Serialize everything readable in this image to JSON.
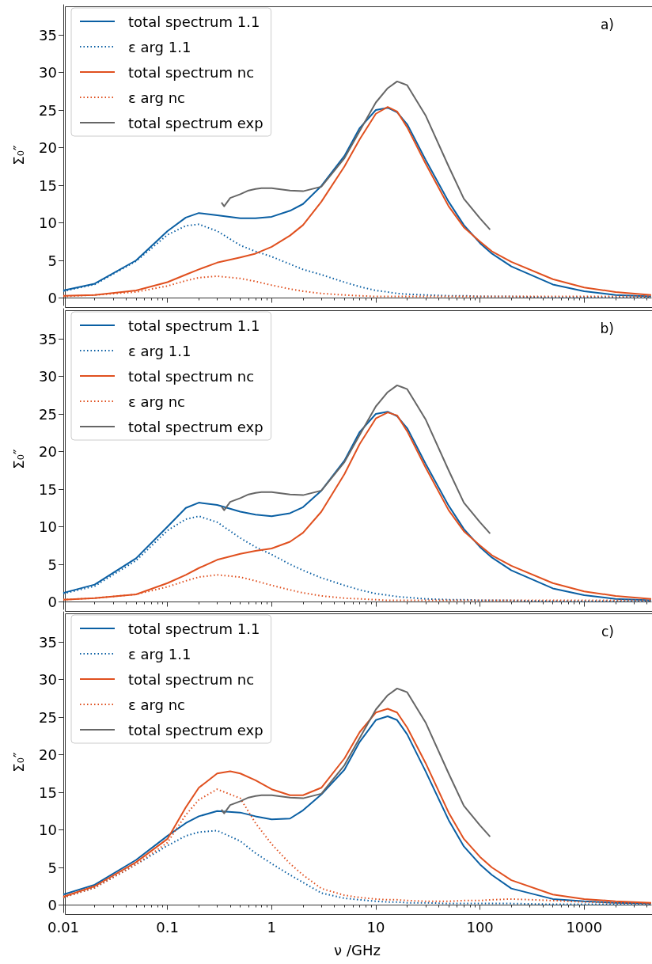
{
  "chart_data": [
    {
      "type": "line",
      "ylabel": "Σ₀″",
      "annotations": [
        "a)"
      ],
      "log": "x",
      "xlim": [
        0.01,
        4400
      ],
      "xticks": [
        0.01,
        0.1,
        1,
        10,
        100,
        1000
      ],
      "ylim": [
        -1,
        39
      ],
      "yticks": [
        0,
        5,
        10,
        15,
        20,
        25,
        30,
        35
      ],
      "tick_labels": "y",
      "legend": "top left",
      "series": [
        {
          "name": "total spectrum 1.1",
          "color": "#0a5fa3",
          "line_style": "solid",
          "x": [
            0.01,
            0.02,
            0.05,
            0.1,
            0.15,
            0.2,
            0.3,
            0.5,
            0.7,
            1,
            1.5,
            2,
            3,
            5,
            7,
            10,
            13,
            16,
            20,
            30,
            50,
            70,
            100,
            130,
            200,
            500,
            1000,
            2000,
            4400
          ],
          "values": [
            1.0,
            1.9,
            5.0,
            8.9,
            10.7,
            11.3,
            11.0,
            10.6,
            10.6,
            10.8,
            11.6,
            12.5,
            14.9,
            18.9,
            22.6,
            25.0,
            25.3,
            24.7,
            23.1,
            18.4,
            12.8,
            9.7,
            7.3,
            5.9,
            4.2,
            1.8,
            0.9,
            0.4,
            0.2
          ]
        },
        {
          "name": "ε arg 1.1",
          "color": "#0a5fa3",
          "line_style": "dotted",
          "x": [
            0.01,
            0.02,
            0.05,
            0.1,
            0.15,
            0.2,
            0.3,
            0.5,
            0.7,
            1,
            1.5,
            2,
            3,
            5,
            7,
            10,
            13,
            16,
            20,
            30,
            50,
            70,
            100,
            130,
            200,
            500,
            1000,
            2000,
            4400
          ],
          "values": [
            0.9,
            1.8,
            4.9,
            8.4,
            9.6,
            9.8,
            8.9,
            7.0,
            6.2,
            5.5,
            4.5,
            3.8,
            3.1,
            2.1,
            1.5,
            1.0,
            0.8,
            0.6,
            0.5,
            0.4,
            0.3,
            0.3,
            0.2,
            0.2,
            0.2,
            0.1,
            0.1,
            0.1,
            0.1
          ]
        },
        {
          "name": "total spectrum nc",
          "color": "#e0501f",
          "line_style": "solid",
          "x": [
            0.01,
            0.02,
            0.05,
            0.1,
            0.15,
            0.2,
            0.3,
            0.5,
            0.7,
            1,
            1.5,
            2,
            3,
            5,
            7,
            10,
            13,
            16,
            20,
            30,
            50,
            70,
            100,
            130,
            200,
            500,
            1000,
            2000,
            4400
          ],
          "values": [
            0.3,
            0.4,
            1.0,
            2.1,
            3.1,
            3.8,
            4.7,
            5.4,
            5.9,
            6.8,
            8.3,
            9.7,
            12.8,
            17.5,
            21.1,
            24.5,
            25.4,
            24.8,
            22.7,
            17.9,
            12.2,
            9.4,
            7.5,
            6.2,
            4.8,
            2.5,
            1.4,
            0.8,
            0.4
          ]
        },
        {
          "name": "ε arg nc",
          "color": "#e0501f",
          "line_style": "dotted",
          "x": [
            0.01,
            0.02,
            0.05,
            0.1,
            0.15,
            0.2,
            0.3,
            0.5,
            0.7,
            1,
            1.5,
            2,
            3,
            5,
            7,
            10,
            13,
            16,
            20,
            30,
            50,
            70,
            100,
            130,
            200,
            500,
            1000,
            2000,
            4400
          ],
          "values": [
            0.2,
            0.4,
            0.8,
            1.6,
            2.3,
            2.7,
            2.9,
            2.6,
            2.2,
            1.7,
            1.2,
            0.9,
            0.6,
            0.4,
            0.3,
            0.2,
            0.2,
            0.2,
            0.2,
            0.2,
            0.2,
            0.2,
            0.2,
            0.2,
            0.2,
            0.2,
            0.2,
            0.2,
            0.2
          ]
        },
        {
          "name": "total spectrum exp",
          "color": "#666666",
          "line_style": "solid",
          "x": [
            0.33,
            0.35,
            0.4,
            0.5,
            0.6,
            0.7,
            0.8,
            1,
            1.5,
            2,
            3,
            5,
            7,
            10,
            13,
            16,
            20,
            30,
            50,
            70,
            100,
            125
          ],
          "values": [
            12.7,
            12.2,
            13.3,
            13.8,
            14.3,
            14.5,
            14.6,
            14.6,
            14.3,
            14.2,
            14.8,
            18.6,
            22.2,
            26.0,
            27.9,
            28.8,
            28.3,
            24.3,
            17.5,
            13.2,
            10.6,
            9.1
          ]
        }
      ]
    },
    {
      "type": "line",
      "ylabel": "Σ₀″",
      "annotations": [
        "b)"
      ],
      "log": "x",
      "xlim": [
        0.01,
        4400
      ],
      "xticks": [
        0.01,
        0.1,
        1,
        10,
        100,
        1000
      ],
      "ylim": [
        -1,
        39
      ],
      "yticks": [
        0,
        5,
        10,
        15,
        20,
        25,
        30,
        35
      ],
      "tick_labels": "y",
      "legend": "top left",
      "series": [
        {
          "name": "total spectrum 1.1",
          "color": "#0a5fa3",
          "line_style": "solid",
          "x": [
            0.01,
            0.02,
            0.05,
            0.1,
            0.15,
            0.2,
            0.3,
            0.5,
            0.7,
            1,
            1.5,
            2,
            3,
            5,
            7,
            10,
            13,
            16,
            20,
            30,
            50,
            70,
            100,
            130,
            200,
            500,
            1000,
            2000,
            4400
          ],
          "values": [
            1.2,
            2.3,
            5.8,
            10.0,
            12.5,
            13.2,
            12.9,
            12.0,
            11.6,
            11.4,
            11.8,
            12.6,
            14.8,
            18.8,
            22.6,
            25.0,
            25.3,
            24.7,
            23.1,
            18.4,
            12.8,
            9.7,
            7.3,
            5.9,
            4.2,
            1.8,
            0.9,
            0.4,
            0.2
          ]
        },
        {
          "name": "ε arg 1.1",
          "color": "#0a5fa3",
          "line_style": "dotted",
          "x": [
            0.01,
            0.02,
            0.05,
            0.1,
            0.15,
            0.2,
            0.3,
            0.5,
            0.7,
            1,
            1.5,
            2,
            3,
            5,
            7,
            10,
            13,
            16,
            20,
            30,
            50,
            70,
            100,
            130,
            200,
            500,
            1000,
            2000,
            4400
          ],
          "values": [
            1.1,
            2.1,
            5.5,
            9.5,
            11.0,
            11.4,
            10.6,
            8.5,
            7.3,
            6.3,
            5.0,
            4.2,
            3.2,
            2.2,
            1.6,
            1.1,
            0.9,
            0.7,
            0.6,
            0.4,
            0.3,
            0.3,
            0.2,
            0.2,
            0.2,
            0.1,
            0.1,
            0.1,
            0.1
          ]
        },
        {
          "name": "total spectrum nc",
          "color": "#e0501f",
          "line_style": "solid",
          "x": [
            0.01,
            0.02,
            0.05,
            0.1,
            0.15,
            0.2,
            0.3,
            0.5,
            0.7,
            1,
            1.5,
            2,
            3,
            5,
            7,
            10,
            13,
            16,
            20,
            30,
            50,
            70,
            100,
            130,
            200,
            500,
            1000,
            2000,
            4400
          ],
          "values": [
            0.3,
            0.5,
            1.0,
            2.5,
            3.6,
            4.5,
            5.6,
            6.4,
            6.8,
            7.1,
            8.0,
            9.2,
            12.0,
            17.0,
            21.0,
            24.4,
            25.2,
            24.8,
            22.7,
            17.9,
            12.2,
            9.4,
            7.5,
            6.2,
            4.8,
            2.5,
            1.4,
            0.8,
            0.4
          ]
        },
        {
          "name": "ε arg nc",
          "color": "#e0501f",
          "line_style": "dotted",
          "x": [
            0.01,
            0.02,
            0.05,
            0.1,
            0.15,
            0.2,
            0.3,
            0.5,
            0.7,
            1,
            1.5,
            2,
            3,
            5,
            7,
            10,
            13,
            16,
            20,
            30,
            50,
            70,
            100,
            130,
            200,
            500,
            1000,
            2000,
            4400
          ],
          "values": [
            0.3,
            0.5,
            1.0,
            2.0,
            2.8,
            3.3,
            3.6,
            3.3,
            2.8,
            2.2,
            1.6,
            1.2,
            0.8,
            0.5,
            0.4,
            0.3,
            0.2,
            0.2,
            0.2,
            0.2,
            0.2,
            0.2,
            0.2,
            0.2,
            0.2,
            0.2,
            0.2,
            0.2,
            0.2
          ]
        },
        {
          "name": "total spectrum exp",
          "color": "#666666",
          "line_style": "solid",
          "x": [
            0.33,
            0.35,
            0.4,
            0.5,
            0.6,
            0.7,
            0.8,
            1,
            1.5,
            2,
            3,
            5,
            7,
            10,
            13,
            16,
            20,
            30,
            50,
            70,
            100,
            125
          ],
          "values": [
            12.7,
            12.2,
            13.3,
            13.8,
            14.3,
            14.5,
            14.6,
            14.6,
            14.3,
            14.2,
            14.8,
            18.6,
            22.2,
            26.0,
            27.9,
            28.8,
            28.3,
            24.3,
            17.5,
            13.2,
            10.6,
            9.1
          ]
        }
      ]
    },
    {
      "type": "line",
      "xlabel": "ν /GHz",
      "ylabel": "Σ₀″",
      "annotations": [
        "c)"
      ],
      "log": "x",
      "xlim": [
        0.01,
        4400
      ],
      "xticks": [
        0.01,
        0.1,
        1,
        10,
        100,
        1000
      ],
      "ylim": [
        -1,
        39
      ],
      "yticks": [
        0,
        5,
        10,
        15,
        20,
        25,
        30,
        35
      ],
      "legend": "top left",
      "series": [
        {
          "name": "total spectrum 1.1",
          "color": "#0a5fa3",
          "line_style": "solid",
          "x": [
            0.01,
            0.02,
            0.05,
            0.1,
            0.15,
            0.2,
            0.3,
            0.5,
            0.7,
            1,
            1.5,
            2,
            3,
            5,
            7,
            10,
            13,
            16,
            20,
            30,
            50,
            70,
            100,
            130,
            200,
            500,
            1000,
            2000,
            4400
          ],
          "values": [
            1.4,
            2.7,
            6.0,
            9.2,
            10.9,
            11.8,
            12.5,
            12.3,
            11.8,
            11.4,
            11.5,
            12.6,
            14.7,
            18.0,
            21.7,
            24.6,
            25.1,
            24.6,
            22.7,
            17.8,
            11.3,
            7.8,
            5.4,
            4.0,
            2.2,
            0.8,
            0.5,
            0.3,
            0.2
          ]
        },
        {
          "name": "ε arg 1.1",
          "color": "#0a5fa3",
          "line_style": "dotted",
          "x": [
            0.01,
            0.02,
            0.05,
            0.1,
            0.15,
            0.2,
            0.3,
            0.5,
            0.7,
            1,
            1.5,
            2,
            3,
            5,
            7,
            10,
            13,
            16,
            20,
            30,
            50,
            70,
            100,
            130,
            200,
            500,
            1000,
            2000,
            4400
          ],
          "values": [
            1.0,
            2.3,
            5.4,
            7.9,
            9.2,
            9.7,
            9.9,
            8.5,
            6.9,
            5.5,
            4.0,
            3.0,
            1.6,
            0.9,
            0.7,
            0.5,
            0.4,
            0.4,
            0.3,
            0.3,
            0.2,
            0.2,
            0.2,
            0.2,
            0.2,
            0.1,
            0.1,
            0.1,
            0.1
          ]
        },
        {
          "name": "total spectrum nc",
          "color": "#e0501f",
          "line_style": "solid",
          "x": [
            0.01,
            0.02,
            0.05,
            0.1,
            0.15,
            0.2,
            0.3,
            0.4,
            0.5,
            0.7,
            1,
            1.5,
            2,
            3,
            5,
            7,
            10,
            13,
            16,
            20,
            30,
            50,
            70,
            100,
            130,
            200,
            500,
            1000,
            2000,
            4400
          ],
          "values": [
            1.1,
            2.5,
            5.7,
            8.8,
            13.0,
            15.6,
            17.5,
            17.8,
            17.5,
            16.6,
            15.4,
            14.6,
            14.6,
            15.6,
            19.5,
            23.0,
            25.6,
            26.1,
            25.6,
            23.6,
            18.9,
            12.3,
            8.8,
            6.4,
            5.0,
            3.3,
            1.4,
            0.8,
            0.5,
            0.3
          ]
        },
        {
          "name": "ε arg nc",
          "color": "#e0501f",
          "line_style": "dotted",
          "x": [
            0.01,
            0.02,
            0.05,
            0.1,
            0.15,
            0.2,
            0.3,
            0.5,
            0.7,
            1,
            1.5,
            2,
            3,
            5,
            7,
            10,
            13,
            16,
            20,
            30,
            50,
            70,
            100,
            130,
            200,
            500,
            1000,
            2000,
            4400
          ],
          "values": [
            1.0,
            2.3,
            5.4,
            8.3,
            12.0,
            14.0,
            15.4,
            14.2,
            10.9,
            8.1,
            5.5,
            4.0,
            2.2,
            1.3,
            1.0,
            0.8,
            0.7,
            0.7,
            0.6,
            0.5,
            0.5,
            0.6,
            0.6,
            0.7,
            0.8,
            0.6,
            0.4,
            0.3,
            0.2
          ]
        },
        {
          "name": "total spectrum exp",
          "color": "#666666",
          "line_style": "solid",
          "x": [
            0.33,
            0.35,
            0.4,
            0.5,
            0.6,
            0.7,
            0.8,
            1,
            1.5,
            2,
            3,
            5,
            7,
            10,
            13,
            16,
            20,
            30,
            50,
            70,
            100,
            125
          ],
          "values": [
            12.7,
            12.2,
            13.3,
            13.8,
            14.3,
            14.5,
            14.6,
            14.6,
            14.3,
            14.2,
            14.8,
            18.6,
            22.2,
            26.0,
            27.9,
            28.8,
            28.3,
            24.3,
            17.5,
            13.2,
            10.6,
            9.1
          ]
        }
      ]
    }
  ]
}
